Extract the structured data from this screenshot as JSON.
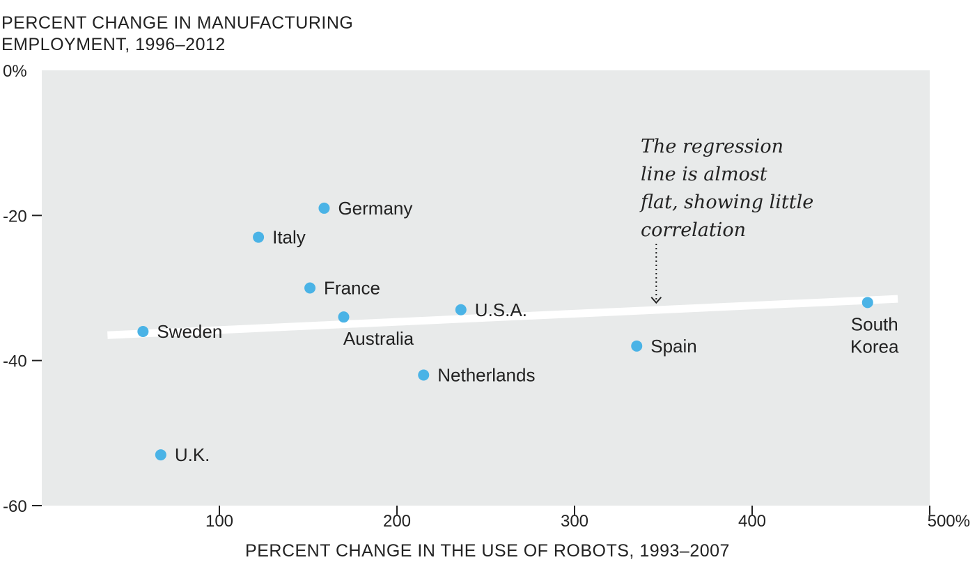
{
  "chart_data": {
    "type": "scatter",
    "ylabel": "PERCENT CHANGE IN MANUFACTURING EMPLOYMENT, 1996–2012",
    "ylabel_lines": [
      "PERCENT CHANGE IN MANUFACTURING",
      "EMPLOYMENT, 1996–2012"
    ],
    "xlabel": "PERCENT CHANGE IN THE USE OF ROBOTS, 1993–2007",
    "xlim": [
      0,
      500
    ],
    "ylim": [
      -60,
      0
    ],
    "x_ticks": [
      {
        "value": 100,
        "label": "100"
      },
      {
        "value": 200,
        "label": "200"
      },
      {
        "value": 300,
        "label": "300"
      },
      {
        "value": 400,
        "label": "400"
      },
      {
        "value": 500,
        "label": "500%"
      }
    ],
    "y_ticks": [
      {
        "value": 0,
        "label": "0%"
      },
      {
        "value": -20,
        "label": "-20"
      },
      {
        "value": -40,
        "label": "-40"
      },
      {
        "value": -60,
        "label": "-60"
      }
    ],
    "grid": false,
    "background_color": "#e8eaea",
    "point_color": "#4ab3e6",
    "regression_line_color": "#ffffff",
    "points": [
      {
        "name": "Sweden",
        "label_lines": [
          "Sweden"
        ],
        "x": 57,
        "y": -36,
        "label_pos": "right"
      },
      {
        "name": "U.K.",
        "label_lines": [
          "U.K."
        ],
        "x": 67,
        "y": -53,
        "label_pos": "right"
      },
      {
        "name": "Italy",
        "label_lines": [
          "Italy"
        ],
        "x": 122,
        "y": -23,
        "label_pos": "right"
      },
      {
        "name": "France",
        "label_lines": [
          "France"
        ],
        "x": 151,
        "y": -30,
        "label_pos": "right"
      },
      {
        "name": "Germany",
        "label_lines": [
          "Germany"
        ],
        "x": 159,
        "y": -19,
        "label_pos": "right"
      },
      {
        "name": "Australia",
        "label_lines": [
          "Australia"
        ],
        "x": 170,
        "y": -34,
        "label_pos": "below"
      },
      {
        "name": "Netherlands",
        "label_lines": [
          "Netherlands"
        ],
        "x": 215,
        "y": -42,
        "label_pos": "right"
      },
      {
        "name": "U.S.A.",
        "label_lines": [
          "U.S.A."
        ],
        "x": 236,
        "y": -33,
        "label_pos": "right"
      },
      {
        "name": "Spain",
        "label_lines": [
          "Spain"
        ],
        "x": 335,
        "y": -38,
        "label_pos": "right"
      },
      {
        "name": "South Korea",
        "label_lines": [
          "South",
          "Korea"
        ],
        "x": 465,
        "y": -32,
        "label_pos": "below"
      }
    ],
    "regression_line": {
      "x": [
        37,
        482
      ],
      "y": [
        -36.5,
        -31.5
      ]
    },
    "annotation": {
      "lines": [
        "The regression",
        "line is almost",
        "flat, showing little",
        "correlation"
      ],
      "arrow_target": {
        "x": 346,
        "y": -33
      }
    }
  }
}
